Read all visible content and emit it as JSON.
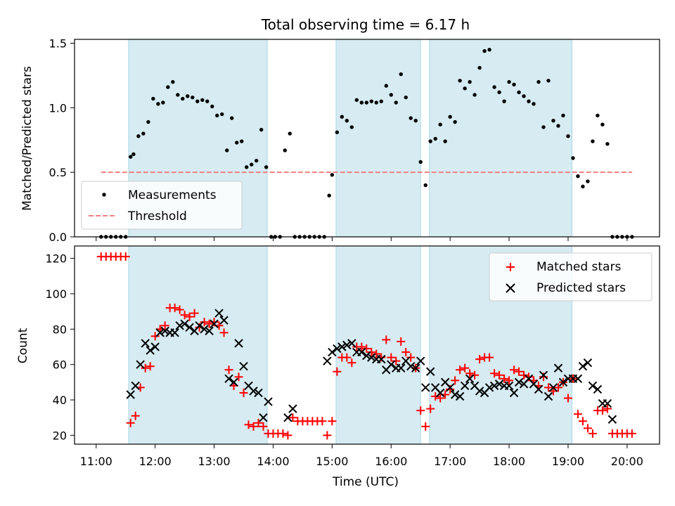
{
  "figure": {
    "title": "Total observing time = 6.17 h",
    "xlabel": "Time (UTC)",
    "observing_periods": [
      [
        "11:33",
        "13:54"
      ],
      [
        "15:04",
        "16:30"
      ],
      [
        "16:39",
        "19:04"
      ]
    ],
    "shade_color": "#add8e6"
  },
  "chart_data": [
    {
      "type": "scatter",
      "ylabel": "Matched/Predicted stars",
      "xlim": [
        "10:38",
        "20:33"
      ],
      "ylim": [
        0,
        1.53
      ],
      "yticks": [
        0.0,
        0.5,
        1.0,
        1.5
      ],
      "yticklabels": [
        "0.0",
        "0.5",
        "1.0",
        "1.5"
      ],
      "legend_position": "lower-left",
      "threshold": {
        "name": "Threshold",
        "y": 0.5,
        "x_range": [
          "11:05",
          "20:05"
        ],
        "color": "#f08080"
      },
      "series": [
        {
          "name": "Measurements",
          "color": "#000000",
          "x": [
            "11:05",
            "11:10",
            "11:15",
            "11:20",
            "11:25",
            "11:30",
            "11:35",
            "11:38",
            "11:43",
            "11:48",
            "11:53",
            "11:58",
            "12:03",
            "12:08",
            "12:13",
            "12:18",
            "12:23",
            "12:28",
            "12:33",
            "12:38",
            "12:43",
            "12:48",
            "12:53",
            "12:58",
            "13:03",
            "13:08",
            "13:13",
            "13:18",
            "13:23",
            "13:28",
            "13:33",
            "13:38",
            "13:43",
            "13:48",
            "13:53",
            "13:58",
            "14:02",
            "14:07",
            "14:12",
            "14:17",
            "14:22",
            "14:27",
            "14:32",
            "14:37",
            "14:42",
            "14:47",
            "14:52",
            "14:57",
            "15:00",
            "15:05",
            "15:10",
            "15:15",
            "15:20",
            "15:25",
            "15:30",
            "15:35",
            "15:40",
            "15:45",
            "15:50",
            "15:55",
            "16:00",
            "16:05",
            "16:10",
            "16:15",
            "16:20",
            "16:25",
            "16:30",
            "16:35",
            "16:40",
            "16:45",
            "16:50",
            "16:55",
            "17:00",
            "17:05",
            "17:10",
            "17:15",
            "17:20",
            "17:25",
            "17:30",
            "17:35",
            "17:40",
            "17:45",
            "17:50",
            "17:55",
            "18:00",
            "18:05",
            "18:10",
            "18:15",
            "18:20",
            "18:25",
            "18:30",
            "18:35",
            "18:40",
            "18:45",
            "18:50",
            "18:55",
            "19:00",
            "19:05",
            "19:10",
            "19:15",
            "19:20",
            "19:25",
            "19:30",
            "19:35",
            "19:40",
            "19:45",
            "19:50",
            "19:55",
            "20:00",
            "20:05"
          ],
          "y": [
            0,
            0,
            0,
            0,
            0,
            0,
            0.62,
            0.64,
            0.78,
            0.8,
            0.89,
            1.07,
            1.03,
            1.04,
            1.16,
            1.2,
            1.1,
            1.07,
            1.09,
            1.08,
            1.05,
            1.06,
            1.05,
            1.01,
            0.94,
            0.95,
            0.67,
            0.92,
            0.73,
            0.74,
            0.54,
            0.56,
            0.59,
            0.83,
            0.54,
            0,
            0,
            0,
            0.67,
            0.8,
            0,
            0,
            0,
            0,
            0,
            0,
            0,
            0.32,
            0.48,
            0.81,
            0.93,
            0.9,
            0.85,
            1.06,
            1.04,
            1.04,
            1.05,
            1.04,
            1.05,
            1.17,
            1.1,
            1.04,
            1.26,
            1.08,
            0.92,
            0.9,
            0.58,
            0.4,
            0.74,
            0.76,
            0.87,
            0.74,
            0.93,
            0.89,
            1.21,
            1.15,
            1.2,
            1.1,
            1.31,
            1.44,
            1.45,
            1.16,
            1.12,
            1.05,
            1.2,
            1.18,
            1.12,
            1.09,
            1.05,
            1.03,
            1.2,
            0.85,
            1.21,
            0.9,
            0.86,
            0.94,
            0.78,
            0.61,
            0.47,
            0.39,
            0.43,
            0.74,
            0.94,
            0.87,
            0.72,
            0,
            0,
            0,
            0,
            0
          ]
        }
      ]
    },
    {
      "type": "scatter",
      "ylabel": "Count",
      "xlim": [
        "10:38",
        "20:33"
      ],
      "ylim": [
        15,
        127
      ],
      "yticks": [
        20,
        40,
        60,
        80,
        100,
        120
      ],
      "yticklabels": [
        "20",
        "40",
        "60",
        "80",
        "100",
        "120"
      ],
      "xticks": [
        "11:00",
        "12:00",
        "13:00",
        "14:00",
        "15:00",
        "16:00",
        "17:00",
        "18:00",
        "19:00",
        "20:00"
      ],
      "legend_position": "upper-right",
      "series": [
        {
          "name": "Matched stars",
          "marker": "plus",
          "color": "#ff0000",
          "x": [
            "11:05",
            "11:10",
            "11:15",
            "11:20",
            "11:25",
            "11:30",
            "11:35",
            "11:40",
            "11:45",
            "11:50",
            "11:55",
            "12:00",
            "12:05",
            "12:10",
            "12:15",
            "12:20",
            "12:25",
            "12:30",
            "12:35",
            "12:40",
            "12:45",
            "12:50",
            "12:55",
            "13:00",
            "13:05",
            "13:10",
            "13:15",
            "13:20",
            "13:25",
            "13:30",
            "13:35",
            "13:40",
            "13:45",
            "13:50",
            "13:55",
            "14:00",
            "14:05",
            "14:10",
            "14:15",
            "14:20",
            "14:25",
            "14:30",
            "14:35",
            "14:40",
            "14:45",
            "14:50",
            "14:55",
            "15:00",
            "15:05",
            "15:10",
            "15:15",
            "15:20",
            "15:25",
            "15:30",
            "15:35",
            "15:40",
            "15:45",
            "15:50",
            "15:55",
            "16:00",
            "16:05",
            "16:10",
            "16:15",
            "16:20",
            "16:25",
            "16:30",
            "16:35",
            "16:40",
            "16:45",
            "16:50",
            "16:55",
            "17:00",
            "17:05",
            "17:10",
            "17:15",
            "17:20",
            "17:25",
            "17:30",
            "17:35",
            "17:40",
            "17:45",
            "17:50",
            "17:55",
            "18:00",
            "18:05",
            "18:10",
            "18:15",
            "18:20",
            "18:25",
            "18:30",
            "18:35",
            "18:40",
            "18:45",
            "18:50",
            "18:55",
            "19:00",
            "19:05",
            "19:10",
            "19:15",
            "19:20",
            "19:25",
            "19:30",
            "19:35",
            "19:40",
            "19:45",
            "19:50",
            "19:55",
            "20:00",
            "20:05"
          ],
          "y": [
            121,
            121,
            121,
            121,
            121,
            121,
            27,
            31,
            47,
            58,
            59,
            76,
            80,
            82,
            92,
            92,
            91,
            88,
            87,
            89,
            81,
            84,
            83,
            84,
            82,
            78,
            57,
            48,
            53,
            44,
            26,
            25,
            27,
            25,
            21,
            21,
            21,
            21,
            20,
            30,
            28,
            28,
            28,
            28,
            28,
            28,
            20,
            28,
            56,
            64,
            64,
            61,
            70,
            70,
            69,
            67,
            66,
            64,
            74,
            64,
            62,
            73,
            67,
            64,
            58,
            34,
            25,
            35,
            42,
            41,
            43,
            46,
            51,
            57,
            58,
            55,
            54,
            63,
            64,
            64,
            55,
            54,
            52,
            51,
            57,
            56,
            54,
            53,
            51,
            48,
            53,
            47,
            45,
            47,
            50,
            41,
            52,
            32,
            28,
            24,
            21,
            34,
            34,
            35,
            21,
            21,
            21,
            21,
            21
          ]
        },
        {
          "name": "Predicted stars",
          "marker": "x",
          "color": "#000000",
          "x": [
            "11:35",
            "11:40",
            "11:45",
            "11:50",
            "11:55",
            "12:00",
            "12:05",
            "12:10",
            "12:15",
            "12:20",
            "12:25",
            "12:30",
            "12:35",
            "12:40",
            "12:45",
            "12:50",
            "12:55",
            "13:00",
            "13:05",
            "13:10",
            "13:15",
            "13:20",
            "13:25",
            "13:30",
            "13:35",
            "13:40",
            "13:45",
            "13:50",
            "13:55",
            "14:15",
            "14:20",
            "14:55",
            "15:00",
            "15:05",
            "15:10",
            "15:15",
            "15:20",
            "15:25",
            "15:30",
            "15:35",
            "15:40",
            "15:45",
            "15:50",
            "15:55",
            "16:00",
            "16:05",
            "16:10",
            "16:15",
            "16:20",
            "16:25",
            "16:30",
            "16:35",
            "16:40",
            "16:45",
            "16:50",
            "16:55",
            "17:00",
            "17:05",
            "17:10",
            "17:15",
            "17:20",
            "17:25",
            "17:30",
            "17:35",
            "17:40",
            "17:45",
            "17:50",
            "17:55",
            "18:00",
            "18:05",
            "18:10",
            "18:15",
            "18:20",
            "18:25",
            "18:30",
            "18:35",
            "18:40",
            "18:45",
            "18:50",
            "18:55",
            "19:00",
            "19:05",
            "19:10",
            "19:15",
            "19:20",
            "19:25",
            "19:30",
            "19:35",
            "19:40",
            "19:45"
          ],
          "y": [
            43,
            48,
            60,
            72,
            68,
            70,
            78,
            79,
            78,
            78,
            82,
            83,
            81,
            79,
            82,
            80,
            79,
            83,
            89,
            85,
            52,
            50,
            72,
            59,
            48,
            45,
            44,
            30,
            39,
            30,
            35,
            62,
            67,
            69,
            70,
            71,
            72,
            67,
            67,
            65,
            64,
            63,
            63,
            57,
            60,
            58,
            58,
            62,
            59,
            58,
            62,
            47,
            56,
            47,
            44,
            50,
            47,
            43,
            42,
            48,
            52,
            48,
            45,
            44,
            47,
            48,
            49,
            48,
            48,
            44,
            50,
            49,
            52,
            49,
            46,
            54,
            42,
            47,
            58,
            50,
            52,
            52,
            52,
            59,
            61,
            48,
            46,
            38,
            38,
            29
          ]
        }
      ]
    }
  ]
}
